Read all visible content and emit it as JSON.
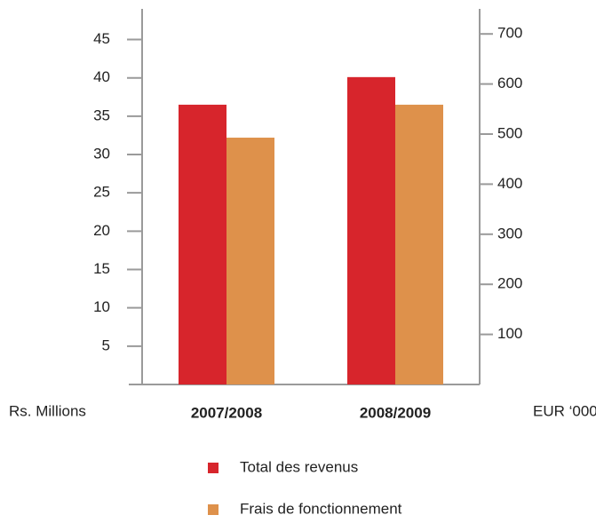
{
  "chart_data": {
    "type": "bar",
    "categories": [
      "2007/2008",
      "2008/2009"
    ],
    "series": [
      {
        "name": "Total des revenus",
        "color": "#d7252c",
        "values": [
          36.5,
          40.1
        ]
      },
      {
        "name": "Frais de fonctionnement",
        "color": "#de914b",
        "values": [
          32.2,
          36.5
        ]
      }
    ],
    "y_label": "Rs. Millions",
    "y2_label": "EUR ‘000",
    "ylim": [
      0,
      49
    ],
    "yticks": [
      5,
      10,
      15,
      20,
      25,
      30,
      35,
      40,
      45
    ],
    "y2lim": [
      0,
      750
    ],
    "y2ticks": [
      100,
      200,
      300,
      400,
      500,
      600,
      700
    ],
    "grid": false,
    "legend": "bottom"
  }
}
